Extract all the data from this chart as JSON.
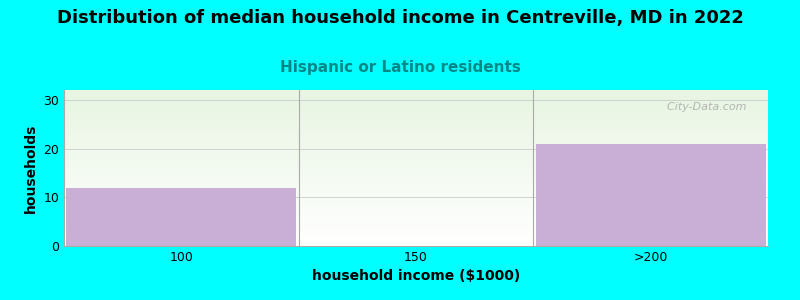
{
  "title": "Distribution of median household income in Centreville, MD in 2022",
  "subtitle": "Hispanic or Latino residents",
  "xlabel": "household income ($1000)",
  "ylabel": "households",
  "categories": [
    "100",
    "150",
    ">200"
  ],
  "values": [
    12,
    0,
    21
  ],
  "bar_color": "#c9aed6",
  "background_color": "#00FFFF",
  "plot_bg_colors": [
    "#e8f5e2",
    "#ffffff"
  ],
  "ylim": [
    0,
    32
  ],
  "yticks": [
    0,
    10,
    20,
    30
  ],
  "title_fontsize": 13,
  "subtitle_fontsize": 11,
  "subtitle_color": "#008888",
  "watermark": "  City-Data.com",
  "watermark_color": "#aaaaaa",
  "grid_color": "#cccccc",
  "divider_color": "#aaaaaa"
}
